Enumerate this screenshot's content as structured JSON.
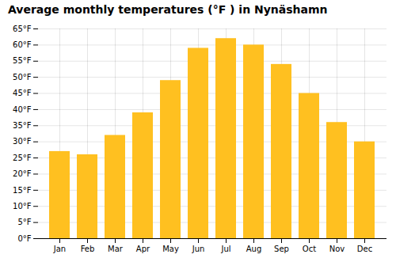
{
  "chart_data": {
    "type": "bar",
    "title": "Average monthly temperatures (°F ) in Nynäshamn",
    "categories": [
      "Jan",
      "Feb",
      "Mar",
      "Apr",
      "May",
      "Jun",
      "Jul",
      "Aug",
      "Sep",
      "Oct",
      "Nov",
      "Dec"
    ],
    "values": [
      27,
      26,
      32,
      39,
      49,
      59,
      62,
      60,
      54,
      45,
      36,
      30
    ],
    "color": "#FFC020",
    "ylim": [
      0,
      65
    ],
    "yticks": [
      {
        "value": 0,
        "label": "0°F"
      },
      {
        "value": 5,
        "label": "5°F"
      },
      {
        "value": 10,
        "label": "10°F"
      },
      {
        "value": 15,
        "label": "15°F"
      },
      {
        "value": 20,
        "label": "20°F"
      },
      {
        "value": 25,
        "label": "25°F"
      },
      {
        "value": 30,
        "label": "30°F"
      },
      {
        "value": 35,
        "label": "35°F"
      },
      {
        "value": 40,
        "label": "40°F"
      },
      {
        "value": 45,
        "label": "45°F"
      },
      {
        "value": 50,
        "label": "50°F"
      },
      {
        "value": 55,
        "label": "55°F"
      },
      {
        "value": 60,
        "label": "60°F"
      },
      {
        "value": 65,
        "label": "65°F"
      }
    ],
    "grid": true
  }
}
